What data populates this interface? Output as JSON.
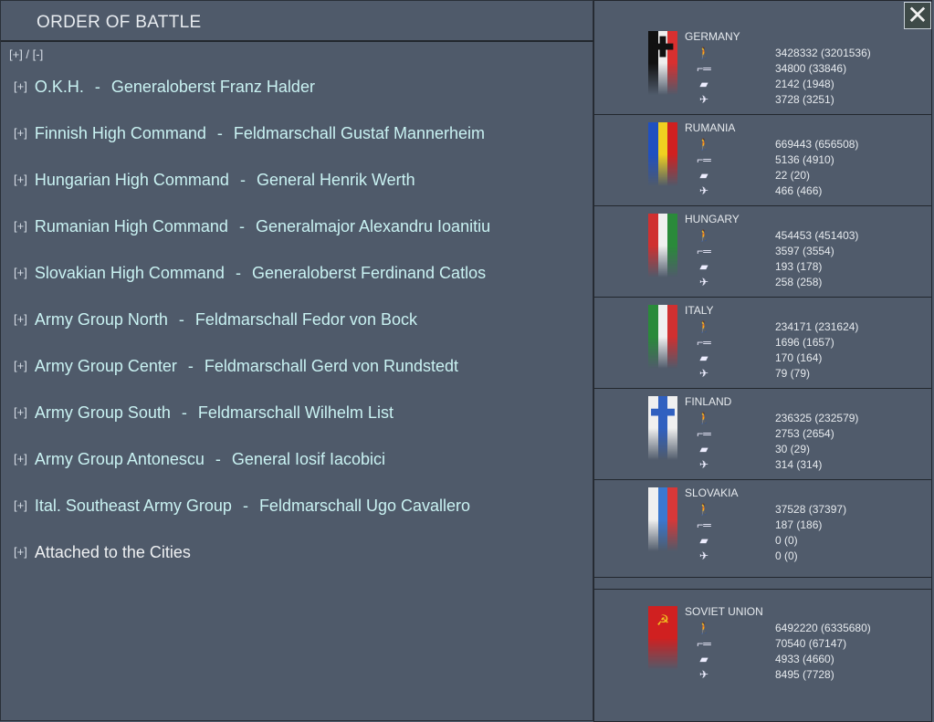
{
  "title": "ORDER OF BATTLE",
  "expand_all": "[+] / [-]",
  "expand_marker": "[+]",
  "close_icon": "close-x",
  "commands": [
    {
      "name": "O.K.H.",
      "commander": "Generaloberst Franz Halder"
    },
    {
      "name": "Finnish High Command",
      "commander": "Feldmarschall Gustaf Mannerheim"
    },
    {
      "name": "Hungarian High Command",
      "commander": "General Henrik Werth"
    },
    {
      "name": "Rumanian High Command",
      "commander": "Generalmajor Alexandru Ioanitiu"
    },
    {
      "name": "Slovakian High Command",
      "commander": "Generaloberst Ferdinand Catlos"
    },
    {
      "name": "Army Group North",
      "commander": "Feldmarschall Fedor von Bock"
    },
    {
      "name": "Army Group Center",
      "commander": "Feldmarschall Gerd von Rundstedt"
    },
    {
      "name": "Army Group South",
      "commander": "Feldmarschall Wilhelm List"
    },
    {
      "name": "Army Group Antonescu",
      "commander": "General Iosif Iacobici"
    },
    {
      "name": "Ital. Southeast Army Group",
      "commander": "Feldmarschall Ugo Cavallero"
    }
  ],
  "attached": "Attached to the Cities",
  "separator": "-",
  "colors": {
    "command_text": "#c9f2f2",
    "background": "#4f5a6a"
  },
  "stat_icons": [
    "infantry-icon",
    "artillery-icon",
    "tank-icon",
    "aircraft-icon"
  ],
  "nations": [
    {
      "name": "GERMANY",
      "flag": [
        "#111111",
        "#eeeeee",
        "#d83030"
      ],
      "stats": [
        "3428332 (3201536)",
        "34800 (33846)",
        "2142 (1948)",
        "3728 (3251)"
      ]
    },
    {
      "name": "RUMANIA",
      "flag": [
        "#2050c0",
        "#f0d020",
        "#d02020"
      ],
      "stats": [
        "669443 (656508)",
        "5136 (4910)",
        "22 (20)",
        "466 (466)"
      ]
    },
    {
      "name": "HUNGARY",
      "flag": [
        "#d03030",
        "#f0f0f0",
        "#2a8a3a"
      ],
      "stats": [
        "454453 (451403)",
        "3597 (3554)",
        "193 (178)",
        "258 (258)"
      ]
    },
    {
      "name": "ITALY",
      "flag": [
        "#2a8a3a",
        "#f0f0f0",
        "#d03030"
      ],
      "stats": [
        "234171 (231624)",
        "1696 (1657)",
        "170 (164)",
        "79 (79)"
      ]
    },
    {
      "name": "FINLAND",
      "flag": [
        "#f0f0f0",
        "#3060c0",
        "#f0f0f0"
      ],
      "stats": [
        "236325 (232579)",
        "2753 (2654)",
        "30 (29)",
        "314 (314)"
      ]
    },
    {
      "name": "SLOVAKIA",
      "flag": [
        "#f0f0f0",
        "#3a78d0",
        "#d83838"
      ],
      "stats": [
        "37528 (37397)",
        "187 (186)",
        "0 (0)",
        "0 (0)"
      ]
    },
    {
      "name": "SOVIET UNION",
      "flag": [
        "#d02020",
        "#d02020",
        "#d02020"
      ],
      "stats": [
        "6492220 (6335680)",
        "70540 (67147)",
        "4933 (4660)",
        "8495 (7728)"
      ]
    }
  ]
}
